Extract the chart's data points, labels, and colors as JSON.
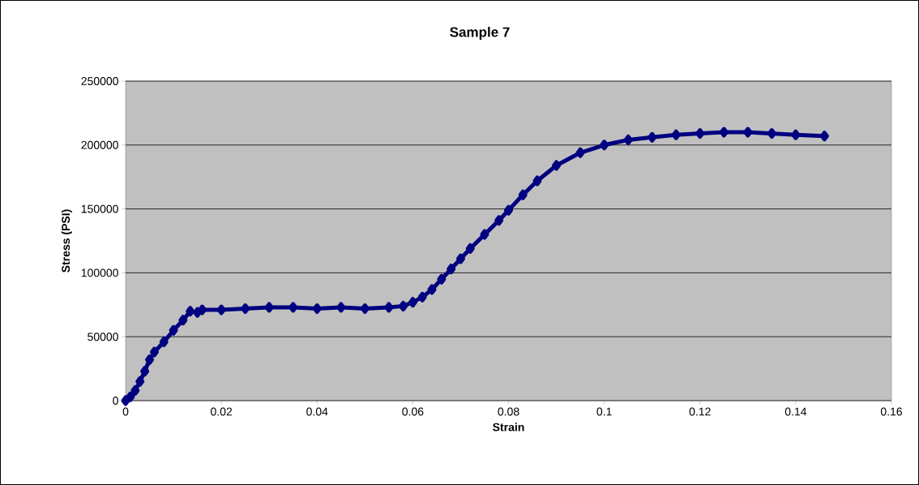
{
  "chart_data": {
    "type": "line",
    "title": "Sample 7",
    "xlabel": "Strain",
    "ylabel": "Stress (PSI)",
    "x": [
      0,
      0.001,
      0.002,
      0.003,
      0.004,
      0.005,
      0.006,
      0.008,
      0.01,
      0.012,
      0.0135,
      0.015,
      0.016,
      0.02,
      0.025,
      0.03,
      0.035,
      0.04,
      0.045,
      0.05,
      0.055,
      0.058,
      0.06,
      0.062,
      0.064,
      0.066,
      0.068,
      0.07,
      0.072,
      0.075,
      0.078,
      0.08,
      0.083,
      0.086,
      0.09,
      0.095,
      0.1,
      0.105,
      0.11,
      0.115,
      0.12,
      0.125,
      0.13,
      0.135,
      0.14,
      0.146
    ],
    "series": [
      {
        "color": "#000080",
        "values": [
          0,
          3000,
          8000,
          15000,
          23000,
          32000,
          38000,
          46000,
          55000,
          63000,
          70000,
          69000,
          71000,
          71000,
          72000,
          73000,
          73000,
          72000,
          73000,
          72000,
          73000,
          74000,
          77000,
          81000,
          87000,
          95000,
          103000,
          111000,
          119000,
          130000,
          141000,
          149000,
          161000,
          172000,
          184000,
          194000,
          200000,
          204000,
          206000,
          208000,
          209000,
          210000,
          210000,
          209000,
          208000,
          207000
        ]
      }
    ],
    "xlim": [
      0,
      0.16
    ],
    "ylim": [
      0,
      250000
    ],
    "xticks": [
      0,
      0.02,
      0.04,
      0.06,
      0.08,
      0.1,
      0.12,
      0.14,
      0.16
    ],
    "yticks": [
      0,
      50000,
      100000,
      150000,
      200000,
      250000
    ],
    "grid": "y",
    "marker": "diamond",
    "line_style": "solid"
  }
}
